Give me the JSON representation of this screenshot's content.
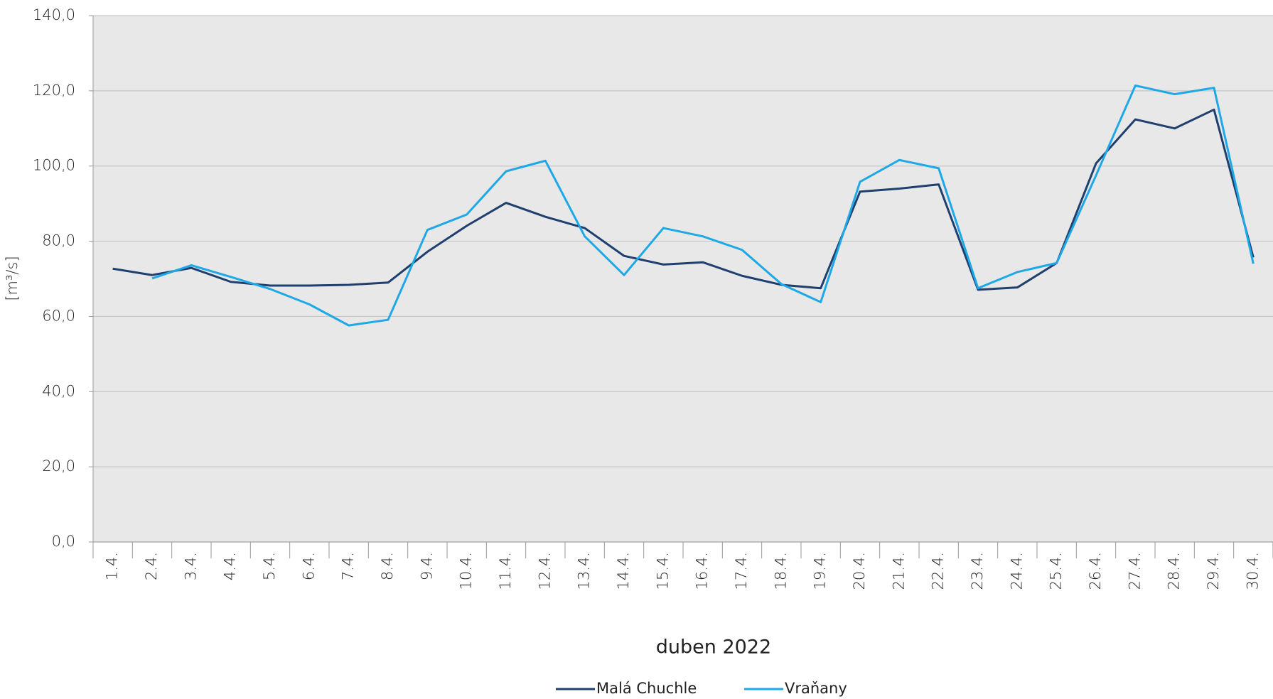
{
  "chart_data": {
    "type": "line",
    "x_label": "duben 2022",
    "y_label": "[m³/s]",
    "categories": [
      "1.",
      "2.",
      "3.",
      "4.",
      "5.",
      "6.",
      "7.",
      "8.",
      "9.",
      "10.",
      "11.",
      "12.",
      "13.",
      "14.",
      "15.",
      "16.",
      "17.",
      "18.",
      "19.",
      "20.",
      "21.",
      "22.",
      "23.",
      "24.",
      "25.",
      "26.",
      "27.",
      "28.",
      "29.",
      "30."
    ],
    "category_suffix": "4.",
    "series": [
      {
        "name": "Malá Chuchle",
        "color": "#1f3f6e",
        "values": [
          72.7,
          71.0,
          72.9,
          69.2,
          68.2,
          68.2,
          68.4,
          69.0,
          77.2,
          84.1,
          90.2,
          86.5,
          83.5,
          76.1,
          73.8,
          74.4,
          70.8,
          68.4,
          67.5,
          93.2,
          94.0,
          95.1,
          67.1,
          67.7,
          74.2,
          100.7,
          112.4,
          110.0,
          115.0,
          75.7
        ]
      },
      {
        "name": "Vraňany",
        "color": "#1ea8e6",
        "values": [
          null,
          70.1,
          73.6,
          70.5,
          67.3,
          63.2,
          57.6,
          59.1,
          83.0,
          87.1,
          98.6,
          101.4,
          81.3,
          71.0,
          83.5,
          81.3,
          77.7,
          68.6,
          63.8,
          95.8,
          101.6,
          99.4,
          67.5,
          71.8,
          74.2,
          97.5,
          121.4,
          119.1,
          120.8,
          74.0
        ]
      }
    ],
    "ylim": [
      0,
      140
    ],
    "yticks": [
      {
        "value": 0,
        "label": "0,0"
      },
      {
        "value": 20,
        "label": "20,0"
      },
      {
        "value": 40,
        "label": "40,0"
      },
      {
        "value": 60,
        "label": "60,0"
      },
      {
        "value": 80,
        "label": "80,0"
      },
      {
        "value": 100,
        "label": "100,0"
      },
      {
        "value": 120,
        "label": "120,0"
      },
      {
        "value": 140,
        "label": "140,0"
      }
    ],
    "grid": true,
    "legend": "bottom"
  }
}
